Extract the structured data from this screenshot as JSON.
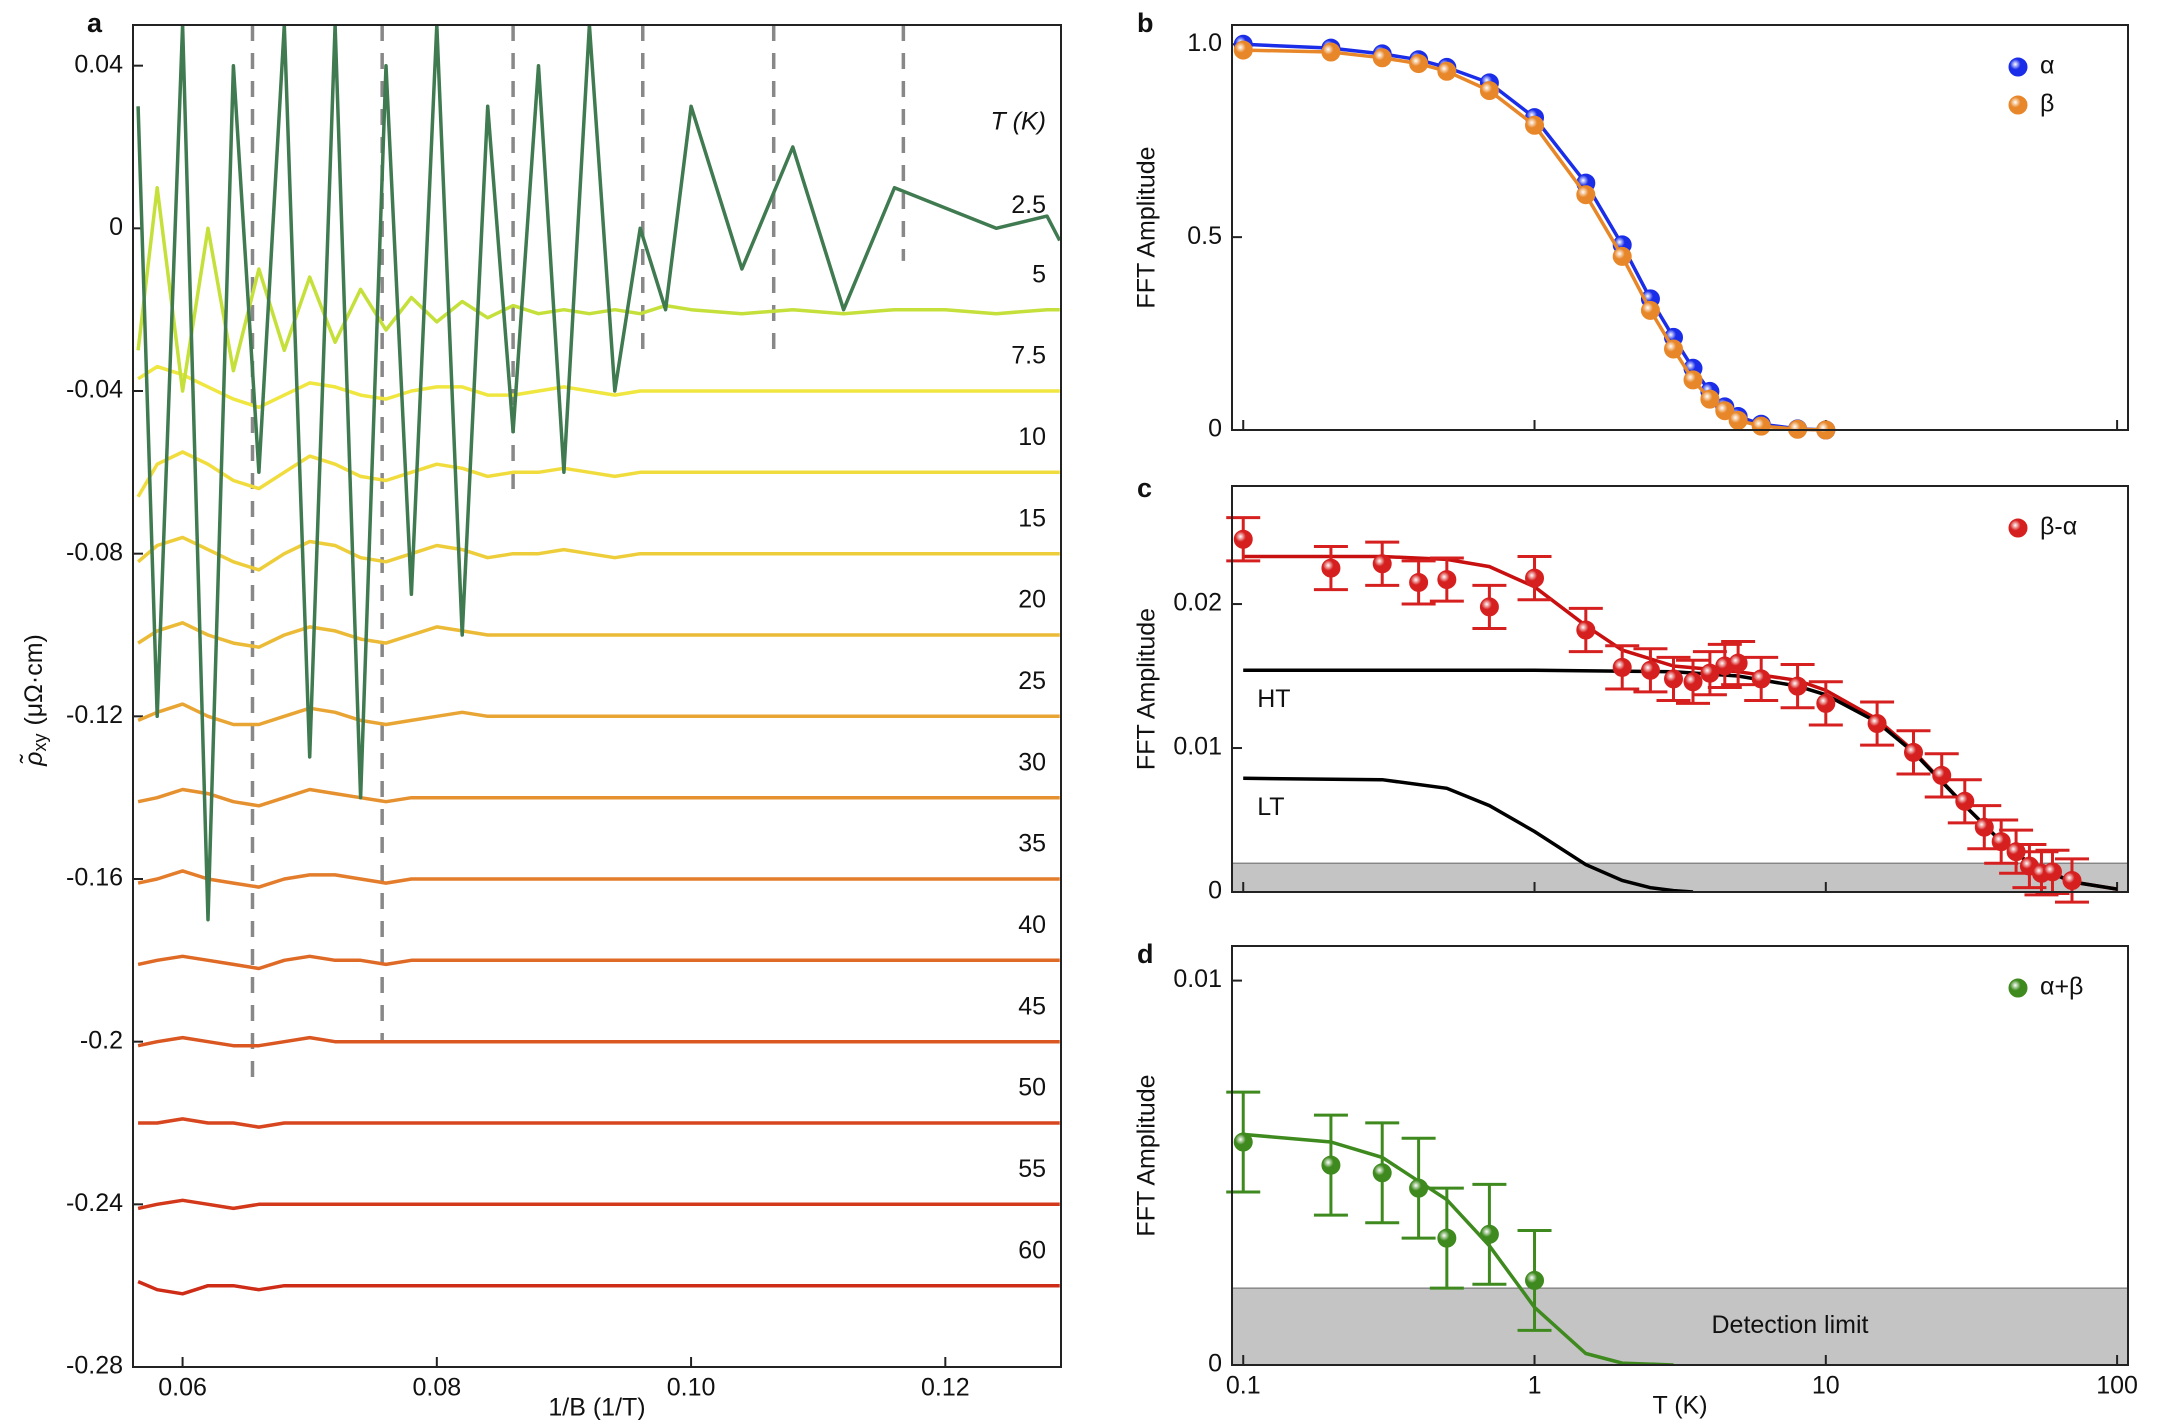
{
  "chart_data": [
    {
      "type": "line",
      "title": "a",
      "xlabel": "1/B (1/T)",
      "ylabel_symbol": "ρ̃",
      "ylabel_sub": "xy",
      "ylabel_unit": "(μΩ·cm)",
      "legend_title": "T (K)",
      "xlim": [
        0.0561,
        0.1291
      ],
      "xticks": [
        0.06,
        0.08,
        {
          "value": 0.1,
          "label": "0.10"
        },
        0.12
      ],
      "ylim": [
        -0.28,
        0.05
      ],
      "yticks": [
        0.04,
        0,
        -0.04,
        -0.08,
        -0.12,
        -0.16,
        -0.2,
        -0.24,
        -0.28
      ],
      "x": [
        0.0565,
        0.058,
        0.06,
        0.062,
        0.064,
        0.066,
        0.068,
        0.07,
        0.072,
        0.074,
        0.076,
        0.078,
        0.08,
        0.082,
        0.084,
        0.086,
        0.088,
        0.09,
        0.092,
        0.094,
        0.096,
        0.098,
        0.1,
        0.104,
        0.108,
        0.112,
        0.116,
        0.12,
        0.124,
        0.128,
        0.129
      ],
      "vlines": [
        {
          "x": 0.0655,
          "y_bottom": -0.21
        },
        {
          "x": 0.0757,
          "y_bottom": -0.2
        },
        {
          "x": 0.086,
          "y_bottom": -0.065
        },
        {
          "x": 0.0962,
          "y_bottom": -0.03
        },
        {
          "x": 0.1065,
          "y_bottom": -0.03
        },
        {
          "x": 0.1167,
          "y_bottom": -0.008
        }
      ],
      "series": [
        {
          "name": "2.5",
          "color": "#3f7a50",
          "values": [
            0.03,
            -0.12,
            0.05,
            -0.17,
            0.04,
            -0.06,
            0.05,
            -0.13,
            0.05,
            -0.14,
            0.04,
            -0.09,
            0.05,
            -0.1,
            0.03,
            -0.05,
            0.04,
            -0.06,
            0.05,
            -0.04,
            0,
            -0.02,
            0.03,
            -0.01,
            0.02,
            -0.02,
            0.01,
            0.005,
            0,
            0.003,
            -0.003
          ]
        },
        {
          "name": "5",
          "color": "#c5e03a",
          "values": [
            -0.03,
            0.01,
            -0.04,
            0,
            -0.035,
            -0.01,
            -0.03,
            -0.012,
            -0.028,
            -0.015,
            -0.025,
            -0.017,
            -0.023,
            -0.018,
            -0.022,
            -0.019,
            -0.021,
            -0.02,
            -0.021,
            -0.02,
            -0.021,
            -0.019,
            -0.02,
            -0.021,
            -0.02,
            -0.021,
            -0.02,
            -0.02,
            -0.021,
            -0.02,
            -0.02
          ]
        },
        {
          "name": "7.5",
          "color": "#f0e640",
          "values": [
            -0.037,
            -0.034,
            -0.036,
            -0.039,
            -0.042,
            -0.044,
            -0.041,
            -0.038,
            -0.039,
            -0.041,
            -0.042,
            -0.04,
            -0.039,
            -0.039,
            -0.041,
            -0.041,
            -0.04,
            -0.039,
            -0.04,
            -0.041,
            -0.04,
            -0.04,
            -0.04,
            -0.04,
            -0.04,
            -0.04,
            -0.04,
            -0.04,
            -0.04,
            -0.04,
            -0.04
          ]
        },
        {
          "name": "10",
          "color": "#f1dc3e",
          "values": [
            -0.066,
            -0.058,
            -0.055,
            -0.058,
            -0.062,
            -0.064,
            -0.06,
            -0.056,
            -0.058,
            -0.061,
            -0.062,
            -0.06,
            -0.058,
            -0.059,
            -0.061,
            -0.06,
            -0.06,
            -0.059,
            -0.06,
            -0.061,
            -0.06,
            -0.06,
            -0.06,
            -0.06,
            -0.06,
            -0.06,
            -0.06,
            -0.06,
            -0.06,
            -0.06,
            -0.06
          ]
        },
        {
          "name": "15",
          "color": "#eecd3a",
          "values": [
            -0.082,
            -0.078,
            -0.076,
            -0.079,
            -0.082,
            -0.084,
            -0.08,
            -0.077,
            -0.078,
            -0.081,
            -0.082,
            -0.08,
            -0.078,
            -0.079,
            -0.081,
            -0.08,
            -0.08,
            -0.079,
            -0.08,
            -0.081,
            -0.08,
            -0.08,
            -0.08,
            -0.08,
            -0.08,
            -0.08,
            -0.08,
            -0.08,
            -0.08,
            -0.08,
            -0.08
          ]
        },
        {
          "name": "20",
          "color": "#ebba37",
          "values": [
            -0.102,
            -0.099,
            -0.097,
            -0.1,
            -0.102,
            -0.103,
            -0.1,
            -0.098,
            -0.099,
            -0.101,
            -0.102,
            -0.1,
            -0.098,
            -0.099,
            -0.1,
            -0.1,
            -0.1,
            -0.1,
            -0.1,
            -0.1,
            -0.1,
            -0.1,
            -0.1,
            -0.1,
            -0.1,
            -0.1,
            -0.1,
            -0.1,
            -0.1,
            -0.1,
            -0.1
          ]
        },
        {
          "name": "25",
          "color": "#e9a534",
          "values": [
            -0.121,
            -0.119,
            -0.117,
            -0.12,
            -0.122,
            -0.122,
            -0.12,
            -0.118,
            -0.119,
            -0.121,
            -0.122,
            -0.121,
            -0.12,
            -0.119,
            -0.12,
            -0.12,
            -0.12,
            -0.12,
            -0.12,
            -0.12,
            -0.12,
            -0.12,
            -0.12,
            -0.12,
            -0.12,
            -0.12,
            -0.12,
            -0.12,
            -0.12,
            -0.12,
            -0.12
          ]
        },
        {
          "name": "30",
          "color": "#e6912f",
          "values": [
            -0.141,
            -0.14,
            -0.138,
            -0.139,
            -0.141,
            -0.142,
            -0.14,
            -0.138,
            -0.139,
            -0.14,
            -0.141,
            -0.14,
            -0.14,
            -0.14,
            -0.14,
            -0.14,
            -0.14,
            -0.14,
            -0.14,
            -0.14,
            -0.14,
            -0.14,
            -0.14,
            -0.14,
            -0.14,
            -0.14,
            -0.14,
            -0.14,
            -0.14,
            -0.14,
            -0.14
          ]
        },
        {
          "name": "35",
          "color": "#e37d2b",
          "values": [
            -0.161,
            -0.16,
            -0.158,
            -0.16,
            -0.161,
            -0.162,
            -0.16,
            -0.159,
            -0.159,
            -0.16,
            -0.161,
            -0.16,
            -0.16,
            -0.16,
            -0.16,
            -0.16,
            -0.16,
            -0.16,
            -0.16,
            -0.16,
            -0.16,
            -0.16,
            -0.16,
            -0.16,
            -0.16,
            -0.16,
            -0.16,
            -0.16,
            -0.16,
            -0.16,
            -0.16
          ]
        },
        {
          "name": "40",
          "color": "#df6a26",
          "values": [
            -0.181,
            -0.18,
            -0.179,
            -0.18,
            -0.181,
            -0.182,
            -0.18,
            -0.179,
            -0.18,
            -0.18,
            -0.181,
            -0.18,
            -0.18,
            -0.18,
            -0.18,
            -0.18,
            -0.18,
            -0.18,
            -0.18,
            -0.18,
            -0.18,
            -0.18,
            -0.18,
            -0.18,
            -0.18,
            -0.18,
            -0.18,
            -0.18,
            -0.18,
            -0.18,
            -0.18
          ]
        },
        {
          "name": "45",
          "color": "#db5722",
          "values": [
            -0.201,
            -0.2,
            -0.199,
            -0.2,
            -0.201,
            -0.201,
            -0.2,
            -0.199,
            -0.2,
            -0.2,
            -0.2,
            -0.2,
            -0.2,
            -0.2,
            -0.2,
            -0.2,
            -0.2,
            -0.2,
            -0.2,
            -0.2,
            -0.2,
            -0.2,
            -0.2,
            -0.2,
            -0.2,
            -0.2,
            -0.2,
            -0.2,
            -0.2,
            -0.2,
            -0.2
          ]
        },
        {
          "name": "50",
          "color": "#d7461e",
          "values": [
            -0.22,
            -0.22,
            -0.219,
            -0.22,
            -0.22,
            -0.221,
            -0.22,
            -0.22,
            -0.22,
            -0.22,
            -0.22,
            -0.22,
            -0.22,
            -0.22,
            -0.22,
            -0.22,
            -0.22,
            -0.22,
            -0.22,
            -0.22,
            -0.22,
            -0.22,
            -0.22,
            -0.22,
            -0.22,
            -0.22,
            -0.22,
            -0.22,
            -0.22,
            -0.22,
            -0.22
          ]
        },
        {
          "name": "55",
          "color": "#d3381a",
          "values": [
            -0.241,
            -0.24,
            -0.239,
            -0.24,
            -0.241,
            -0.24,
            -0.24,
            -0.24,
            -0.24,
            -0.24,
            -0.24,
            -0.24,
            -0.24,
            -0.24,
            -0.24,
            -0.24,
            -0.24,
            -0.24,
            -0.24,
            -0.24,
            -0.24,
            -0.24,
            -0.24,
            -0.24,
            -0.24,
            -0.24,
            -0.24,
            -0.24,
            -0.24,
            -0.24,
            -0.24
          ]
        },
        {
          "name": "60",
          "color": "#ce2c16",
          "values": [
            -0.259,
            -0.261,
            -0.262,
            -0.26,
            -0.26,
            -0.261,
            -0.26,
            -0.26,
            -0.26,
            -0.26,
            -0.26,
            -0.26,
            -0.26,
            -0.26,
            -0.26,
            -0.26,
            -0.26,
            -0.26,
            -0.26,
            -0.26,
            -0.26,
            -0.26,
            -0.26,
            -0.26,
            -0.26,
            -0.26,
            -0.26,
            -0.26,
            -0.26,
            -0.26,
            -0.26
          ]
        }
      ]
    },
    {
      "type": "scatter",
      "title": "b",
      "ylabel": "FFT Amplitude",
      "xscale": "log",
      "legend": "upper right",
      "show_xtick_labels": false,
      "xlim": [
        0.0915,
        109
      ],
      "xticks": [
        0.1,
        1,
        10,
        100
      ],
      "ylim": [
        0,
        1.05
      ],
      "yticks": [
        0,
        0.5,
        {
          "value": 1,
          "label": "1.0"
        }
      ],
      "series": [
        {
          "name": "α",
          "color": "#1a2de8",
          "line": true,
          "x": [
            0.1,
            0.2,
            0.3,
            0.4,
            0.5,
            0.7,
            1,
            1.5,
            2,
            2.5,
            3,
            3.5,
            4,
            4.5,
            5,
            6,
            8,
            10
          ],
          "values": [
            1,
            0.99,
            0.975,
            0.96,
            0.94,
            0.9,
            0.81,
            0.64,
            0.48,
            0.34,
            0.24,
            0.16,
            0.1,
            0.06,
            0.035,
            0.015,
            0.003,
            0
          ]
        },
        {
          "name": "β",
          "color": "#e8872a",
          "line": true,
          "x": [
            0.1,
            0.2,
            0.3,
            0.4,
            0.5,
            0.7,
            1,
            1.5,
            2,
            2.5,
            3,
            3.5,
            4,
            4.5,
            5,
            6,
            8,
            10
          ],
          "values": [
            0.985,
            0.98,
            0.965,
            0.95,
            0.93,
            0.88,
            0.79,
            0.61,
            0.45,
            0.31,
            0.21,
            0.13,
            0.08,
            0.05,
            0.025,
            0.01,
            0.002,
            0
          ]
        }
      ]
    },
    {
      "type": "scatter",
      "title": "c",
      "ylabel": "FFT Amplitude",
      "xscale": "log",
      "legend": "upper right",
      "show_xtick_labels": false,
      "xlim": [
        0.0915,
        109
      ],
      "xticks": [
        0.1,
        1,
        10,
        100
      ],
      "ylim": [
        0,
        0.0282
      ],
      "yticks": [
        0,
        0.01,
        0.02
      ],
      "detection_limit": 0.002,
      "fits": [
        {
          "color": "#c81010",
          "x": [
            0.1,
            0.3,
            0.5,
            0.7,
            1,
            1.5,
            2,
            3,
            5,
            8,
            10,
            15,
            20,
            30,
            40,
            50,
            70,
            100
          ],
          "values": [
            0.0233,
            0.0233,
            0.0231,
            0.0226,
            0.0212,
            0.0185,
            0.0168,
            0.0157,
            0.0153,
            0.0147,
            0.014,
            0.012,
            0.0098,
            0.006,
            0.0035,
            0.002,
            0.0007,
            0.0002
          ]
        },
        {
          "label": "HT",
          "color": "#000000",
          "x": [
            0.1,
            1,
            3,
            5,
            8,
            10,
            15,
            20,
            30,
            40,
            50,
            70,
            100
          ],
          "values": [
            0.0154,
            0.0154,
            0.0153,
            0.015,
            0.0143,
            0.0137,
            0.0118,
            0.0097,
            0.006,
            0.0035,
            0.002,
            0.0007,
            0.0002
          ]
        },
        {
          "label": "LT",
          "color": "#000000",
          "x": [
            0.1,
            0.3,
            0.5,
            0.7,
            1,
            1.5,
            2,
            2.5,
            3,
            3.5
          ],
          "values": [
            0.0079,
            0.0078,
            0.0072,
            0.006,
            0.0042,
            0.0019,
            0.0008,
            0.0003,
            0.0001,
            0
          ]
        }
      ],
      "series": [
        {
          "name": "β-α",
          "color": "#d62020",
          "x": [
            0.1,
            0.2,
            0.3,
            0.4,
            0.5,
            0.7,
            1,
            1.5,
            2,
            2.5,
            3,
            3.5,
            4,
            4.5,
            5,
            6,
            8,
            10,
            15,
            20,
            25,
            30,
            35,
            40,
            45,
            50,
            55,
            60,
            70
          ],
          "values": [
            0.0245,
            0.0225,
            0.0228,
            0.0215,
            0.0217,
            0.0198,
            0.0218,
            0.0182,
            0.0156,
            0.0154,
            0.0148,
            0.0146,
            0.0152,
            0.0157,
            0.0159,
            0.0148,
            0.0143,
            0.0131,
            0.0117,
            0.0097,
            0.0081,
            0.0063,
            0.0045,
            0.0035,
            0.0028,
            0.0018,
            0.0013,
            0.0014,
            0.0008
          ],
          "errors": [
            0.0015,
            0.0015,
            0.0015,
            0.0015,
            0.0015,
            0.0015,
            0.0015,
            0.0015,
            0.0015,
            0.0015,
            0.0015,
            0.0015,
            0.0015,
            0.0015,
            0.0015,
            0.0015,
            0.0015,
            0.0015,
            0.0015,
            0.0015,
            0.0015,
            0.0015,
            0.0015,
            0.0015,
            0.0015,
            0.0015,
            0.0015,
            0.0015,
            0.0015
          ]
        }
      ]
    },
    {
      "type": "scatter",
      "title": "d",
      "ylabel": "FFT Amplitude",
      "xlabel": "T (K)",
      "xscale": "log",
      "legend": "upper right",
      "xlim": [
        0.0915,
        109
      ],
      "xticks": [
        0.1,
        1,
        10,
        100
      ],
      "ylim": [
        0,
        0.0109
      ],
      "yticks": [
        0,
        0.01
      ],
      "detection_limit": 0.002,
      "detection_label": "Detection limit",
      "fits": [
        {
          "color": "#3f8a1f",
          "x": [
            0.1,
            0.2,
            0.3,
            0.5,
            0.7,
            1,
            1.5,
            2,
            3
          ],
          "values": [
            0.006,
            0.0058,
            0.0054,
            0.0043,
            0.0031,
            0.0015,
            0.0003,
            5e-05,
            0
          ]
        }
      ],
      "series": [
        {
          "name": "α+β",
          "color": "#3f8a1f",
          "x": [
            0.1,
            0.2,
            0.3,
            0.4,
            0.5,
            0.7,
            1
          ],
          "values": [
            0.0058,
            0.0052,
            0.005,
            0.0046,
            0.0033,
            0.0034,
            0.0022
          ],
          "errors": [
            0.0013,
            0.0013,
            0.0013,
            0.0013,
            0.0013,
            0.0013,
            0.0013
          ]
        }
      ]
    }
  ]
}
